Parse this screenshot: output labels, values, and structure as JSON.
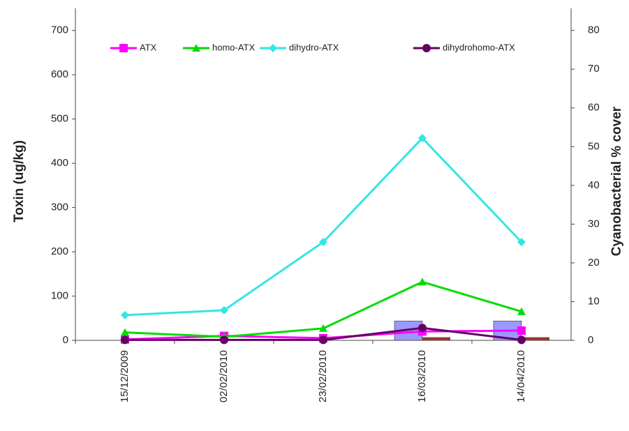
{
  "chart_data": {
    "type": "line",
    "y_label": "Toxin (ug/kg)",
    "y2_label": "Cyanobacterial % cover",
    "categories": [
      "15/12/2009",
      "02/02/2010",
      "23/02/2010",
      "16/03/2010",
      "14/04/2010"
    ],
    "ylim": [
      0,
      750
    ],
    "yticks": [
      0,
      100,
      200,
      300,
      400,
      500,
      600,
      700
    ],
    "y2lim": [
      0,
      85.7
    ],
    "y2ticks": [
      0,
      10,
      20,
      30,
      40,
      50,
      60,
      70,
      80
    ],
    "grid": false,
    "legend": "top",
    "series": [
      {
        "kind": "bar",
        "axis": "y2",
        "color": "#9999ff",
        "values": [
          0,
          0,
          0,
          5,
          5
        ]
      },
      {
        "kind": "bar",
        "axis": "y2",
        "color": "#993333",
        "values": [
          0,
          0,
          0,
          0.8,
          0.8
        ]
      },
      {
        "name": "ATX",
        "kind": "line",
        "marker": "square",
        "color": "#ff00ff",
        "values": [
          2,
          10,
          5,
          20,
          22
        ]
      },
      {
        "name": "homo-ATX",
        "kind": "line",
        "marker": "triangle",
        "color": "#00dd00",
        "values": [
          18,
          8,
          27,
          132,
          65
        ]
      },
      {
        "name": "dihydro-ATX",
        "kind": "line",
        "marker": "diamond",
        "color": "#33e6e6",
        "values": [
          57,
          68,
          222,
          457,
          222
        ]
      },
      {
        "name": "dihydrohomo-ATX",
        "kind": "line",
        "marker": "circle",
        "color": "#660066",
        "values": [
          1,
          1,
          1,
          28,
          1
        ]
      }
    ]
  }
}
